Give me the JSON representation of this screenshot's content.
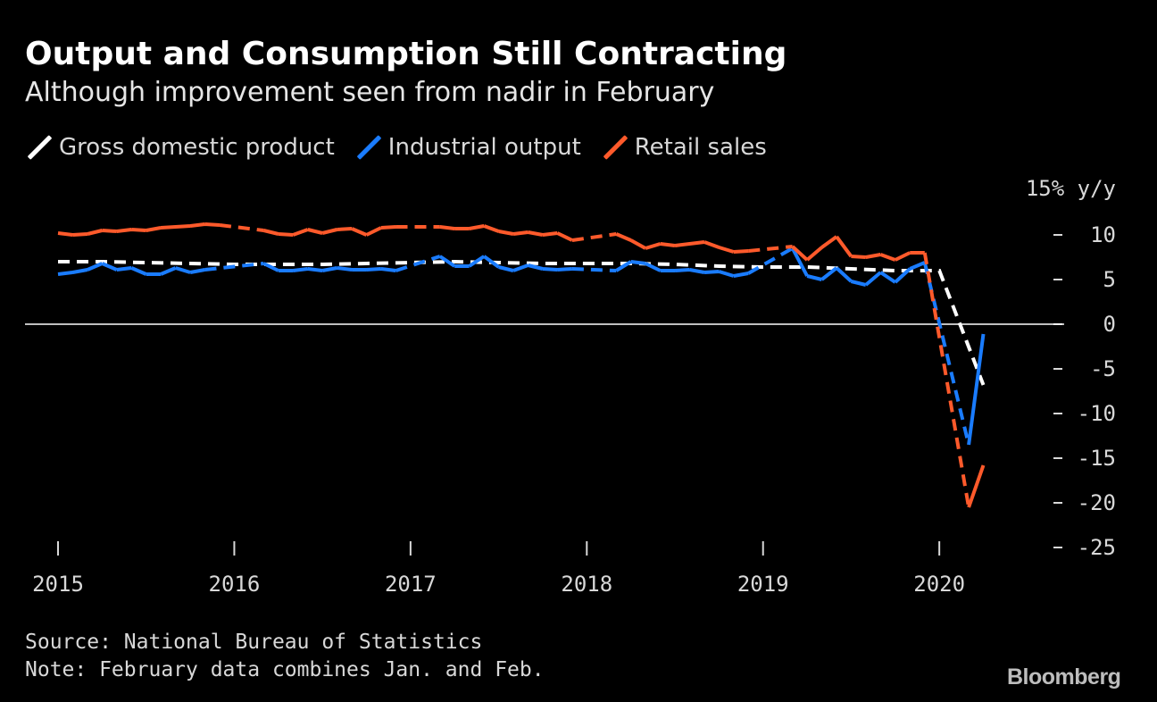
{
  "title": "Output and Consumption Still Contracting",
  "subtitle": "Although improvement seen from nadir in February",
  "source": "Source: National Bureau of Statistics",
  "note": "Note: February data combines Jan. and Feb.",
  "brand": "Bloomberg",
  "chart_data": {
    "type": "line",
    "yunit_label": "15% y/y",
    "ylim": [
      -25,
      15
    ],
    "yticks": [
      10,
      5,
      0,
      -5,
      -10,
      -15,
      -20,
      -25
    ],
    "yticklabels": [
      "10",
      "5",
      "0",
      "-5",
      "-10",
      "-15",
      "-20",
      "-25"
    ],
    "xlim": [
      2015.0,
      2020.45
    ],
    "xticks": [
      2015,
      2016,
      2017,
      2018,
      2019,
      2020
    ],
    "xticklabels": [
      "2015",
      "2016",
      "2017",
      "2018",
      "2019",
      "2020"
    ],
    "zero_line": true,
    "series": [
      {
        "name": "Gross domestic product",
        "color": "#ffffff",
        "dashed_all": true,
        "points": [
          [
            2015.0,
            7.0
          ],
          [
            2015.25,
            7.0
          ],
          [
            2015.5,
            6.9
          ],
          [
            2015.75,
            6.8
          ],
          [
            2016.0,
            6.7
          ],
          [
            2016.25,
            6.7
          ],
          [
            2016.5,
            6.7
          ],
          [
            2016.75,
            6.8
          ],
          [
            2017.0,
            6.9
          ],
          [
            2017.25,
            7.0
          ],
          [
            2017.5,
            6.9
          ],
          [
            2017.75,
            6.8
          ],
          [
            2018.0,
            6.8
          ],
          [
            2018.25,
            6.8
          ],
          [
            2018.5,
            6.7
          ],
          [
            2018.75,
            6.5
          ],
          [
            2019.0,
            6.4
          ],
          [
            2019.25,
            6.4
          ],
          [
            2019.5,
            6.2
          ],
          [
            2019.75,
            6.0
          ],
          [
            2020.0,
            6.0
          ],
          [
            2020.25,
            -6.8
          ]
        ]
      },
      {
        "name": "Industrial output",
        "color": "#1a7cff",
        "points": [
          [
            2015.0,
            5.6
          ],
          [
            2015.083,
            5.8
          ],
          [
            2015.167,
            6.1
          ],
          [
            2015.25,
            6.8
          ],
          [
            2015.333,
            6.1
          ],
          [
            2015.417,
            6.3
          ],
          [
            2015.5,
            5.6
          ],
          [
            2015.583,
            5.6
          ],
          [
            2015.667,
            6.3
          ],
          [
            2015.75,
            5.8
          ],
          [
            2015.833,
            6.1
          ],
          [
            2015.917,
            null
          ],
          [
            2016.0,
            null
          ],
          [
            2016.083,
            null
          ],
          [
            2016.167,
            6.8
          ],
          [
            2016.25,
            6.0
          ],
          [
            2016.333,
            6.0
          ],
          [
            2016.417,
            6.2
          ],
          [
            2016.5,
            6.0
          ],
          [
            2016.583,
            6.3
          ],
          [
            2016.667,
            6.1
          ],
          [
            2016.75,
            6.1
          ],
          [
            2016.833,
            6.2
          ],
          [
            2016.917,
            6.0
          ],
          [
            2017.0,
            null
          ],
          [
            2017.083,
            null
          ],
          [
            2017.167,
            7.6
          ],
          [
            2017.25,
            6.5
          ],
          [
            2017.333,
            6.5
          ],
          [
            2017.417,
            7.6
          ],
          [
            2017.5,
            6.4
          ],
          [
            2017.583,
            6.0
          ],
          [
            2017.667,
            6.6
          ],
          [
            2017.75,
            6.2
          ],
          [
            2017.833,
            6.1
          ],
          [
            2017.917,
            6.2
          ],
          [
            2018.0,
            null
          ],
          [
            2018.083,
            null
          ],
          [
            2018.167,
            6.0
          ],
          [
            2018.25,
            7.0
          ],
          [
            2018.333,
            6.8
          ],
          [
            2018.417,
            6.0
          ],
          [
            2018.5,
            6.0
          ],
          [
            2018.583,
            6.1
          ],
          [
            2018.667,
            5.8
          ],
          [
            2018.75,
            5.9
          ],
          [
            2018.833,
            5.4
          ],
          [
            2018.917,
            5.7
          ],
          [
            2019.0,
            null
          ],
          [
            2019.083,
            null
          ],
          [
            2019.167,
            8.5
          ],
          [
            2019.25,
            5.4
          ],
          [
            2019.333,
            5.0
          ],
          [
            2019.417,
            6.3
          ],
          [
            2019.5,
            4.8
          ],
          [
            2019.583,
            4.4
          ],
          [
            2019.667,
            5.8
          ],
          [
            2019.75,
            4.7
          ],
          [
            2019.833,
            6.2
          ],
          [
            2019.917,
            6.9
          ],
          [
            2020.0,
            null
          ],
          [
            2020.083,
            null
          ],
          [
            2020.167,
            -13.5
          ],
          [
            2020.25,
            -1.1
          ]
        ]
      },
      {
        "name": "Retail sales",
        "color": "#ff5a2b",
        "points": [
          [
            2015.0,
            10.2
          ],
          [
            2015.083,
            10.0
          ],
          [
            2015.167,
            10.1
          ],
          [
            2015.25,
            10.5
          ],
          [
            2015.333,
            10.4
          ],
          [
            2015.417,
            10.6
          ],
          [
            2015.5,
            10.5
          ],
          [
            2015.583,
            10.8
          ],
          [
            2015.667,
            10.9
          ],
          [
            2015.75,
            11.0
          ],
          [
            2015.833,
            11.2
          ],
          [
            2015.917,
            11.1
          ],
          [
            2016.0,
            null
          ],
          [
            2016.083,
            null
          ],
          [
            2016.167,
            10.5
          ],
          [
            2016.25,
            10.1
          ],
          [
            2016.333,
            10.0
          ],
          [
            2016.417,
            10.6
          ],
          [
            2016.5,
            10.2
          ],
          [
            2016.583,
            10.6
          ],
          [
            2016.667,
            10.7
          ],
          [
            2016.75,
            10.0
          ],
          [
            2016.833,
            10.8
          ],
          [
            2016.917,
            10.9
          ],
          [
            2017.0,
            null
          ],
          [
            2017.083,
            null
          ],
          [
            2017.167,
            10.9
          ],
          [
            2017.25,
            10.7
          ],
          [
            2017.333,
            10.7
          ],
          [
            2017.417,
            11.0
          ],
          [
            2017.5,
            10.4
          ],
          [
            2017.583,
            10.1
          ],
          [
            2017.667,
            10.3
          ],
          [
            2017.75,
            10.0
          ],
          [
            2017.833,
            10.2
          ],
          [
            2017.917,
            9.4
          ],
          [
            2018.0,
            null
          ],
          [
            2018.083,
            null
          ],
          [
            2018.167,
            10.1
          ],
          [
            2018.25,
            9.4
          ],
          [
            2018.333,
            8.5
          ],
          [
            2018.417,
            9.0
          ],
          [
            2018.5,
            8.8
          ],
          [
            2018.583,
            9.0
          ],
          [
            2018.667,
            9.2
          ],
          [
            2018.75,
            8.6
          ],
          [
            2018.833,
            8.1
          ],
          [
            2018.917,
            8.2
          ],
          [
            2019.0,
            null
          ],
          [
            2019.083,
            null
          ],
          [
            2019.167,
            8.7
          ],
          [
            2019.25,
            7.2
          ],
          [
            2019.333,
            8.6
          ],
          [
            2019.417,
            9.8
          ],
          [
            2019.5,
            7.6
          ],
          [
            2019.583,
            7.5
          ],
          [
            2019.667,
            7.8
          ],
          [
            2019.75,
            7.2
          ],
          [
            2019.833,
            8.0
          ],
          [
            2019.917,
            8.0
          ],
          [
            2020.0,
            null
          ],
          [
            2020.083,
            null
          ],
          [
            2020.167,
            -20.5
          ],
          [
            2020.25,
            -15.8
          ]
        ]
      }
    ]
  }
}
